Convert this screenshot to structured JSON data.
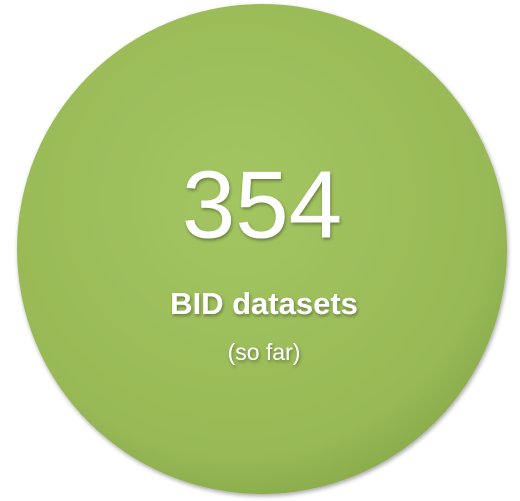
{
  "circle": {
    "number": 354,
    "label": "BID datasets",
    "note": "(so far)"
  }
}
